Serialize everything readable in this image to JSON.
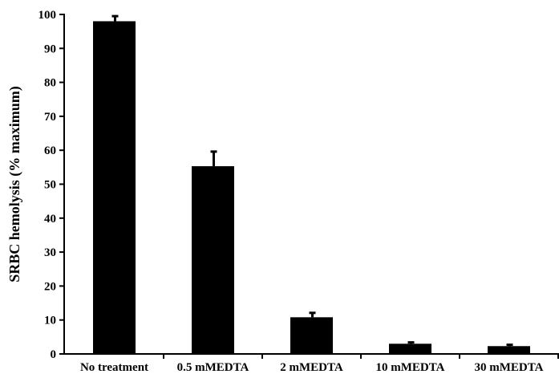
{
  "chart_data": {
    "type": "bar",
    "title": "",
    "xlabel": "",
    "ylabel": "SRBC hemolysis (% maximum)",
    "ylim": [
      0,
      100
    ],
    "yticks": [
      0,
      10,
      20,
      30,
      40,
      50,
      60,
      70,
      80,
      90,
      100
    ],
    "categories": [
      "No treatment",
      "0.5 mMEDTA",
      "2 mMEDTA",
      "10 mMEDTA",
      "30 mMEDTA"
    ],
    "values": [
      98,
      55.3,
      10.8,
      3.0,
      2.3
    ],
    "errors": [
      1.5,
      4.3,
      1.3,
      0.4,
      0.4
    ],
    "grid": false,
    "legend": "none",
    "colors": {
      "bar": "#000000",
      "axis": "#000000",
      "background": "#ffffff"
    }
  }
}
